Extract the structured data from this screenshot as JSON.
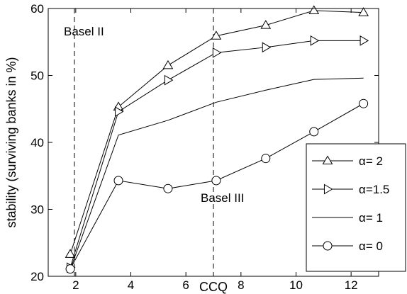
{
  "chart_data": {
    "type": "line",
    "title": "",
    "xlabel": "CCQ",
    "ylabel": "stability (surviving banks in %)",
    "xlim": [
      1,
      13
    ],
    "ylim": [
      20,
      60
    ],
    "xticks": [
      2,
      4,
      6,
      8,
      10,
      12
    ],
    "yticks": [
      20,
      30,
      40,
      50,
      60
    ],
    "grid": false,
    "legend_position": "right",
    "series": [
      {
        "name": "α= 2",
        "marker": "triangle-up",
        "x": [
          1.8,
          3.55,
          5.35,
          7.1,
          8.9,
          10.65,
          12.45
        ],
        "y": [
          23.3,
          45.3,
          51.5,
          55.9,
          57.5,
          59.7,
          59.4
        ]
      },
      {
        "name": "α=1.5",
        "marker": "triangle-right",
        "x": [
          1.8,
          3.55,
          5.35,
          7.1,
          8.9,
          10.65,
          12.45
        ],
        "y": [
          21.3,
          44.6,
          49.3,
          53.4,
          54.2,
          55.2,
          55.2
        ]
      },
      {
        "name": "α= 1",
        "marker": "none",
        "x": [
          1.8,
          3.55,
          5.35,
          7.1,
          8.9,
          10.65,
          12.45
        ],
        "y": [
          21.0,
          41.1,
          43.3,
          46.0,
          47.8,
          49.4,
          49.6
        ]
      },
      {
        "name": "α= 0",
        "marker": "circle",
        "x": [
          1.8,
          3.55,
          5.35,
          7.1,
          8.9,
          10.65,
          12.45
        ],
        "y": [
          21.1,
          34.3,
          33.1,
          34.3,
          37.6,
          41.6,
          45.8
        ]
      }
    ],
    "vlines": [
      {
        "x": 1.95,
        "label": "Basel II"
      },
      {
        "x": 7.0,
        "label": "Basel III"
      }
    ],
    "colors": {
      "line": "#000000",
      "background": "#ffffff"
    }
  }
}
